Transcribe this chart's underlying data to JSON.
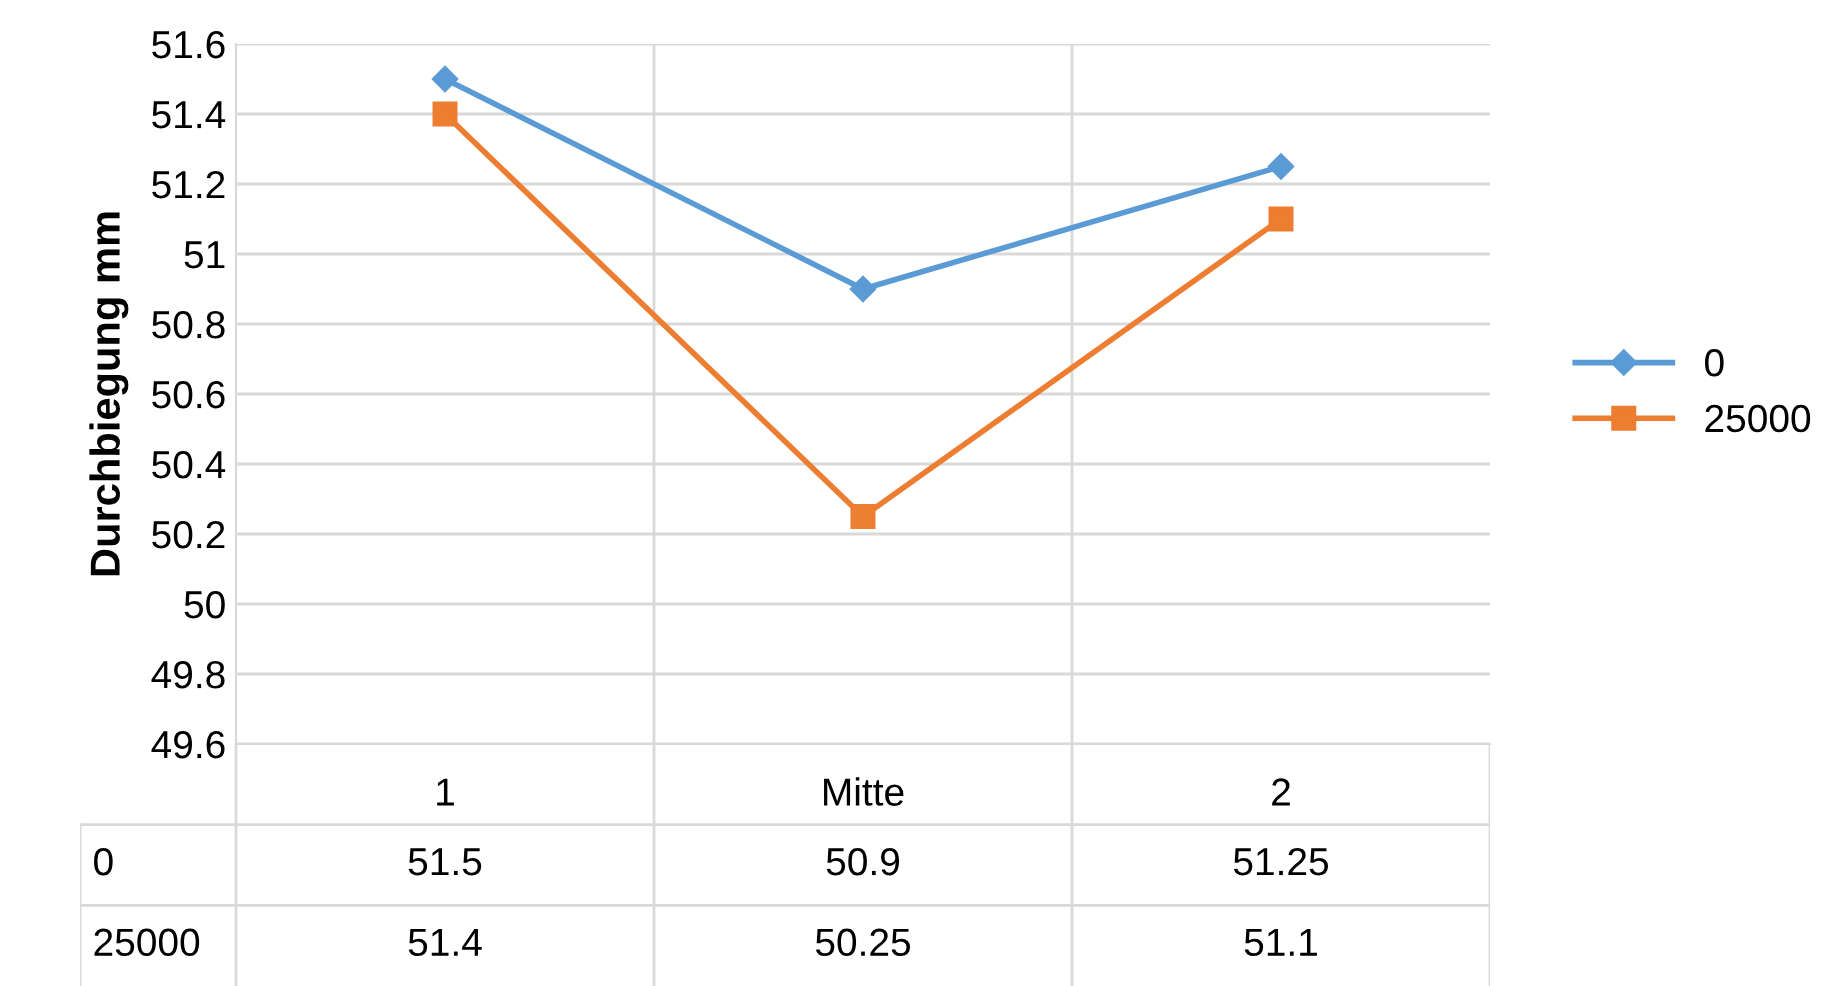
{
  "chart_data": {
    "type": "line",
    "ylabel": "Durchbiegung mm",
    "categories": [
      "1",
      "Mitte",
      "2"
    ],
    "series": [
      {
        "name": "0",
        "color": "#5b9bd5",
        "marker": "diamond",
        "values": [
          51.5,
          50.9,
          51.25
        ]
      },
      {
        "name": "25000",
        "color": "#ed7d31",
        "marker": "square",
        "values": [
          51.4,
          50.25,
          51.1
        ]
      }
    ],
    "ylim": [
      49.6,
      51.6
    ],
    "yticks": [
      49.6,
      49.8,
      50,
      50.2,
      50.4,
      50.6,
      50.8,
      51,
      51.2,
      51.4,
      51.6
    ],
    "grid": true,
    "legend": "right",
    "data_labels": true
  }
}
